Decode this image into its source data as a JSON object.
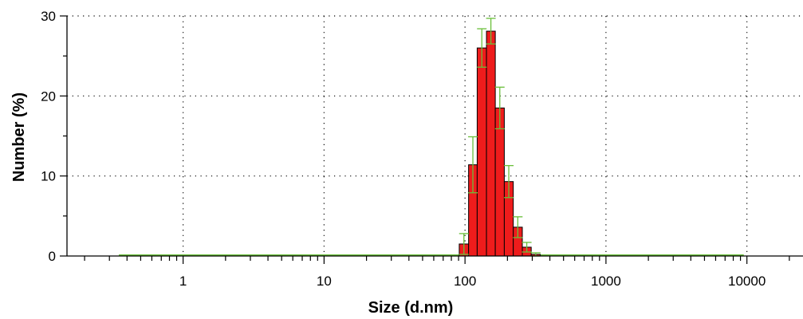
{
  "chart_data": {
    "type": "bar",
    "xlabel": "Size (d.nm)",
    "ylabel": "Number (%)",
    "x_scale": "log",
    "xlim": [
      0.15,
      25000
    ],
    "ylim": [
      0,
      30
    ],
    "x_ticks": [
      {
        "value": 1,
        "label": "1"
      },
      {
        "value": 10,
        "label": "10"
      },
      {
        "value": 100,
        "label": "100"
      },
      {
        "value": 1000,
        "label": "1000"
      },
      {
        "value": 10000,
        "label": "10000"
      }
    ],
    "y_ticks": [
      {
        "value": 0,
        "label": "0"
      },
      {
        "value": 10,
        "label": "10"
      },
      {
        "value": 20,
        "label": "20"
      },
      {
        "value": 30,
        "label": "30"
      }
    ],
    "grid": true,
    "bars": [
      {
        "x_from": 91,
        "x_to": 106,
        "value": 1.5,
        "err": 1.3
      },
      {
        "x_from": 106,
        "x_to": 122,
        "value": 11.4,
        "err": 3.5
      },
      {
        "x_from": 122,
        "x_to": 142,
        "value": 26.0,
        "err": 2.4
      },
      {
        "x_from": 142,
        "x_to": 164,
        "value": 28.1,
        "err": 1.6
      },
      {
        "x_from": 164,
        "x_to": 190,
        "value": 18.5,
        "err": 2.6
      },
      {
        "x_from": 190,
        "x_to": 220,
        "value": 9.3,
        "err": 2.0
      },
      {
        "x_from": 220,
        "x_to": 255,
        "value": 3.6,
        "err": 1.3
      },
      {
        "x_from": 255,
        "x_to": 295,
        "value": 1.1,
        "err": 0.6
      },
      {
        "x_from": 295,
        "x_to": 342,
        "value": 0.2,
        "err": 0.2
      }
    ],
    "baseline_range": [
      0.35,
      9500
    ],
    "colors": {
      "bar_fill": "#ee1c1c",
      "bar_stroke": "#000000",
      "error_bar": "#6abf3a",
      "baseline": "#6abf3a",
      "grid": "#000000",
      "axis": "#000000"
    }
  }
}
